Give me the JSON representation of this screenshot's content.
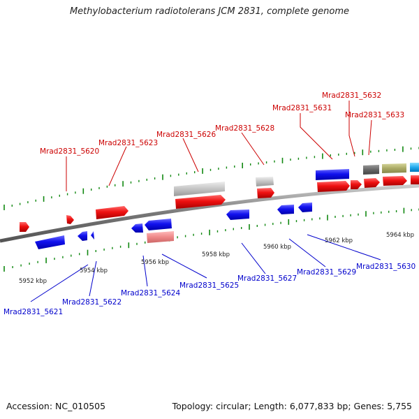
{
  "title": "Methylobacterium radiotolerans JCM 2831, complete genome",
  "accession": "Accession: NC_010505",
  "topology": "Topology: circular; Length: 6,077,833 bp; Genes: 5,755",
  "scale_labels": [
    "5952 kbp",
    "5954 kbp",
    "5956 kbp",
    "5958 kbp",
    "5960 kbp",
    "5962 kbp",
    "5964 kbp"
  ],
  "colors": {
    "forward_gene": "#ee1111",
    "reverse_gene": "#1111ee",
    "pseudo_gene": "#bbbbbb",
    "pink_gene": "#ee8888",
    "dark_gene": "#666666",
    "olive_gene": "#aaaa66",
    "cyan_gene": "#22aaee",
    "tick": "#118811",
    "label_forward": "#cc0000",
    "label_reverse": "#0000cc",
    "backbone": "#777777"
  },
  "forward_labels": [
    "Mrad2831_5620",
    "Mrad2831_5623",
    "Mrad2831_5626",
    "Mrad2831_5628",
    "Mrad2831_5631",
    "Mrad2831_5632",
    "Mrad2831_5633"
  ],
  "reverse_labels": [
    "Mrad2831_5621",
    "Mrad2831_5622",
    "Mrad2831_5624",
    "Mrad2831_5625",
    "Mrad2831_5627",
    "Mrad2831_5629",
    "Mrad2831_5630"
  ]
}
